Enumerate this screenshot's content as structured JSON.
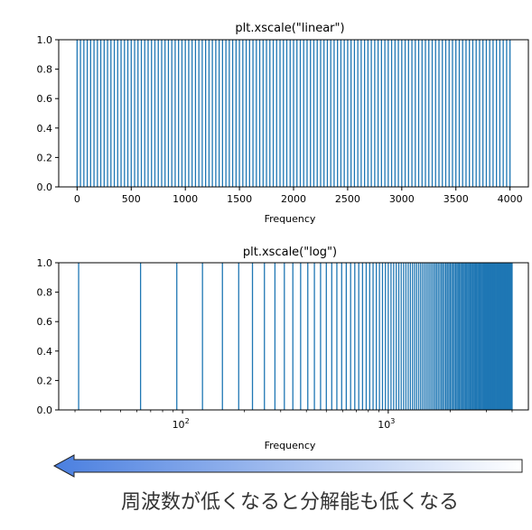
{
  "chart_data": [
    {
      "type": "bar",
      "title": "plt.xscale(\"linear\")",
      "xlabel": "Frequency",
      "ylabel": "",
      "xscale": "linear",
      "line_spacing": 31.25,
      "x_first": 0,
      "x_last": 4000,
      "xlim": [
        -170,
        4170
      ],
      "ylim": [
        0,
        1
      ],
      "line_value": 1.0,
      "xticks": [
        0,
        500,
        1000,
        1500,
        2000,
        2500,
        3000,
        3500,
        4000
      ],
      "xtick_labels": [
        "0",
        "500",
        "1000",
        "1500",
        "2000",
        "2500",
        "3000",
        "3500",
        "4000"
      ],
      "yticks": [
        0.0,
        0.2,
        0.4,
        0.6,
        0.8,
        1.0
      ],
      "ytick_labels": [
        "0.0",
        "0.2",
        "0.4",
        "0.6",
        "0.8",
        "1.0"
      ],
      "color": "#1f77b4",
      "grid": false
    },
    {
      "type": "bar",
      "title": "plt.xscale(\"log\")",
      "xlabel": "Frequency",
      "ylabel": "",
      "xscale": "log",
      "line_spacing": 31.25,
      "x_first": 31.25,
      "x_last": 4000,
      "xlim": [
        25,
        4800
      ],
      "ylim": [
        0,
        1
      ],
      "line_value": 1.0,
      "xticks": [
        100,
        1000
      ],
      "xtick_labels": [
        {
          "base": "10",
          "exp": "2"
        },
        {
          "base": "10",
          "exp": "3"
        }
      ],
      "yticks": [
        0.0,
        0.2,
        0.4,
        0.6,
        0.8,
        1.0
      ],
      "ytick_labels": [
        "0.0",
        "0.2",
        "0.4",
        "0.6",
        "0.8",
        "1.0"
      ],
      "color": "#1f77b4",
      "grid": false
    }
  ],
  "arrow": {
    "direction": "left",
    "gradient_from": "#4a7fe0",
    "gradient_to": "#ffffff"
  },
  "caption": "周波数が低くなると分解能も低くなる"
}
